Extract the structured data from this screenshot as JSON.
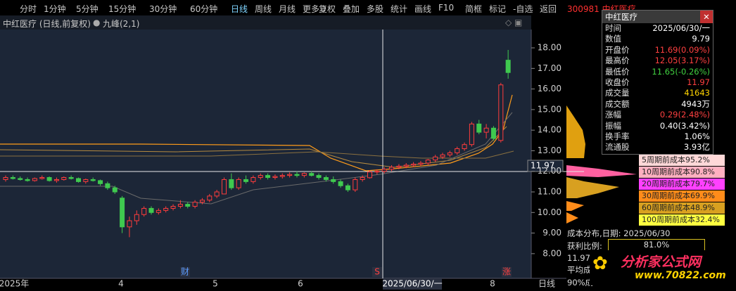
{
  "toolbar": {
    "periods": [
      "分时",
      "1分钟",
      "5分钟",
      "15分钟",
      "30分钟",
      "60分钟",
      "日线",
      "周线",
      "月线",
      "更多 〉"
    ],
    "active_period": 6,
    "tools": [
      "复权",
      "叠加",
      "多股",
      "统计",
      "画线",
      "F10",
      "简框",
      "标记",
      "-自选",
      "返回"
    ],
    "stock": "300981 中红医疗"
  },
  "chart_header": {
    "title": "中红医疗 (日线,前复权)",
    "indicator": "九峰(2,1)"
  },
  "chart_data": {
    "type": "candlestick",
    "up_color": "#ff3c3c",
    "down_color": "#3fc94f",
    "ylim": [
      6.8,
      18.89
    ],
    "yticks": [
      {
        "value": 8,
        "label": "8.00"
      },
      {
        "value": 9,
        "label": "9.00"
      },
      {
        "value": 10,
        "label": "10.00"
      },
      {
        "value": 11,
        "label": "11.00"
      },
      {
        "value": 12,
        "label": "12.00"
      },
      {
        "value": 13,
        "label": "13.00"
      },
      {
        "value": 14,
        "label": "14.00"
      },
      {
        "value": 15,
        "label": "15.00"
      },
      {
        "value": 16,
        "label": "16.00"
      },
      {
        "value": 17,
        "label": "17.00"
      },
      {
        "value": 18,
        "label": "18.00"
      }
    ],
    "x_labels": [
      "2025年",
      "4",
      "5",
      "6",
      "2025/06/30/一",
      "8",
      "日线"
    ],
    "markers": [
      "财",
      "S",
      "涨"
    ],
    "candles": [
      [
        11.6,
        11.8,
        11.5,
        11.7
      ],
      [
        11.7,
        11.8,
        11.6,
        11.65
      ],
      [
        11.65,
        11.75,
        11.55,
        11.6
      ],
      [
        11.6,
        11.7,
        11.5,
        11.55
      ],
      [
        11.55,
        11.7,
        11.5,
        11.65
      ],
      [
        11.65,
        11.8,
        11.6,
        11.7
      ],
      [
        11.7,
        11.75,
        11.5,
        11.55
      ],
      [
        11.55,
        11.7,
        11.45,
        11.6
      ],
      [
        11.6,
        11.75,
        11.55,
        11.7
      ],
      [
        11.7,
        11.8,
        11.6,
        11.65
      ],
      [
        11.65,
        11.7,
        11.45,
        11.5
      ],
      [
        11.5,
        11.65,
        11.4,
        11.6
      ],
      [
        11.6,
        11.7,
        11.5,
        11.55
      ],
      [
        11.55,
        11.6,
        11.3,
        11.4
      ],
      [
        11.4,
        11.5,
        11.1,
        11.2
      ],
      [
        11.2,
        11.3,
        10.9,
        11.0
      ],
      [
        10.7,
        10.8,
        9.0,
        9.3
      ],
      [
        9.3,
        9.8,
        8.8,
        9.6
      ],
      [
        9.6,
        10.1,
        9.4,
        9.9
      ],
      [
        9.9,
        10.3,
        9.8,
        10.2
      ],
      [
        10.2,
        10.3,
        9.9,
        10.0
      ],
      [
        10.0,
        10.2,
        9.9,
        10.1
      ],
      [
        10.1,
        10.3,
        10.0,
        10.2
      ],
      [
        10.2,
        10.4,
        10.1,
        10.3
      ],
      [
        10.3,
        10.6,
        10.2,
        10.4
      ],
      [
        10.4,
        10.5,
        10.2,
        10.3
      ],
      [
        10.3,
        10.6,
        10.2,
        10.5
      ],
      [
        10.5,
        10.7,
        10.4,
        10.6
      ],
      [
        10.6,
        10.9,
        10.5,
        10.8
      ],
      [
        10.8,
        11.1,
        10.7,
        11.0
      ],
      [
        10.9,
        11.7,
        10.9,
        11.6
      ],
      [
        11.6,
        11.9,
        11.1,
        11.2
      ],
      [
        11.2,
        11.7,
        11.1,
        11.6
      ],
      [
        11.6,
        11.8,
        11.4,
        11.5
      ],
      [
        11.5,
        11.8,
        11.4,
        11.7
      ],
      [
        11.7,
        11.9,
        11.6,
        11.8
      ],
      [
        11.8,
        11.9,
        11.6,
        11.7
      ],
      [
        11.7,
        11.85,
        11.6,
        11.75
      ],
      [
        11.75,
        11.9,
        11.65,
        11.8
      ],
      [
        11.8,
        11.95,
        11.7,
        11.85
      ],
      [
        11.85,
        12.0,
        11.7,
        11.8
      ],
      [
        11.8,
        11.95,
        11.7,
        11.9
      ],
      [
        11.9,
        12.0,
        11.75,
        11.8
      ],
      [
        11.8,
        11.9,
        11.6,
        11.7
      ],
      [
        11.7,
        11.8,
        11.5,
        11.6
      ],
      [
        11.6,
        11.75,
        11.4,
        11.5
      ],
      [
        11.5,
        11.6,
        11.2,
        11.3
      ],
      [
        11.3,
        11.4,
        11.0,
        11.1
      ],
      [
        11.1,
        11.7,
        11.0,
        11.6
      ],
      [
        11.6,
        11.8,
        11.5,
        11.7
      ],
      [
        11.69,
        12.05,
        11.65,
        11.97
      ],
      [
        11.97,
        12.1,
        11.85,
        12.0
      ],
      [
        12.0,
        12.2,
        11.9,
        12.1
      ],
      [
        12.1,
        12.3,
        12.0,
        12.2
      ],
      [
        12.2,
        12.35,
        12.1,
        12.25
      ],
      [
        12.25,
        12.4,
        12.15,
        12.3
      ],
      [
        12.3,
        12.45,
        12.2,
        12.35
      ],
      [
        12.35,
        12.5,
        12.25,
        12.4
      ],
      [
        12.4,
        12.6,
        12.3,
        12.55
      ],
      [
        12.55,
        12.8,
        12.45,
        12.7
      ],
      [
        12.7,
        12.9,
        12.6,
        12.8
      ],
      [
        12.8,
        13.0,
        12.7,
        12.9
      ],
      [
        12.9,
        13.2,
        12.8,
        13.1
      ],
      [
        13.1,
        13.4,
        13.0,
        13.3
      ],
      [
        13.3,
        14.4,
        13.2,
        14.3
      ],
      [
        14.3,
        14.5,
        13.8,
        13.9
      ],
      [
        13.9,
        14.3,
        13.6,
        14.1
      ],
      [
        14.1,
        14.2,
        13.5,
        13.6
      ],
      [
        13.5,
        16.3,
        13.4,
        16.2
      ],
      [
        17.4,
        17.9,
        16.5,
        16.8
      ]
    ],
    "crosshair_value": "11.97"
  },
  "info_panel": {
    "title": "中红医疗",
    "rows": [
      {
        "label": "时间",
        "value": "2025/06/30/一",
        "color": "#ffffff"
      },
      {
        "label": "数值",
        "value": "9.79",
        "color": "#ffffff"
      },
      {
        "label": "开盘价",
        "value": "11.69(0.09%)",
        "color": "#ff4040"
      },
      {
        "label": "最高价",
        "value": "12.05(3.17%)",
        "color": "#ff4040"
      },
      {
        "label": "最低价",
        "value": "11.65(-0.26%)",
        "color": "#40d040"
      },
      {
        "label": "收盘价",
        "value": "11.97",
        "color": "#ff4040"
      },
      {
        "label": "成交量",
        "value": "41643",
        "color": "#ffd400"
      },
      {
        "label": "成交额",
        "value": "4943万",
        "color": "#ffffff"
      },
      {
        "label": "涨幅",
        "value": "0.29(2.48%)",
        "color": "#ff4040"
      },
      {
        "label": "振幅",
        "value": "0.40(3.42%)",
        "color": "#ffffff"
      },
      {
        "label": "换手率",
        "value": "1.06%",
        "color": "#ffffff"
      },
      {
        "label": "流通股",
        "value": "3.93亿",
        "color": "#ffffff"
      }
    ]
  },
  "cost_legend": [
    {
      "label": "5周期前成本95.2%",
      "color": "#ffd8d8"
    },
    {
      "label": "10周期前成本90.8%",
      "color": "#ffb0c0"
    },
    {
      "label": "20周期前成本79.7%",
      "color": "#ff40ff"
    },
    {
      "label": "30周期前成本69.9%",
      "color": "#ff8c1a"
    },
    {
      "label": "60周期前成本48.9%",
      "color": "#d8a020"
    },
    {
      "label": "100周期前成本32.4%",
      "color": "#ffff40"
    }
  ],
  "cost_summary": {
    "date_line": "成本分布,日期: 2025/06/30",
    "profit_label": "获利比例:",
    "profit_value": "81.0%",
    "line3": "11.97",
    "line4": "平均成",
    "line5": "90%成"
  },
  "logo": {
    "title": "分析家公式网",
    "url": "www.70822.com"
  }
}
